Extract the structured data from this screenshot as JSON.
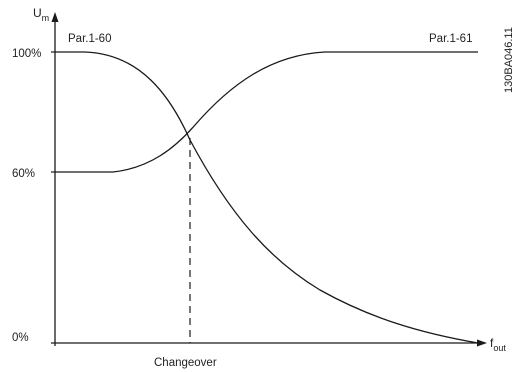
{
  "axes": {
    "y_label_main": "U",
    "y_label_sub": "m",
    "x_label_main": "f",
    "x_label_sub": "out"
  },
  "y_ticks": [
    {
      "label": "100%",
      "value": 100
    },
    {
      "label": "60%",
      "value": 60
    },
    {
      "label": "0%",
      "value": 0
    }
  ],
  "curves": [
    {
      "label": "Par.1-60",
      "start_level_percent": 100,
      "end_level_percent": 0
    },
    {
      "label": "Par.1-61",
      "start_level_percent": 60,
      "end_level_percent": 100
    }
  ],
  "changeover_label": "Changeover",
  "figure_id": "130BA046.11",
  "colors": {
    "line": "#1a1a1a",
    "text": "#222222"
  }
}
